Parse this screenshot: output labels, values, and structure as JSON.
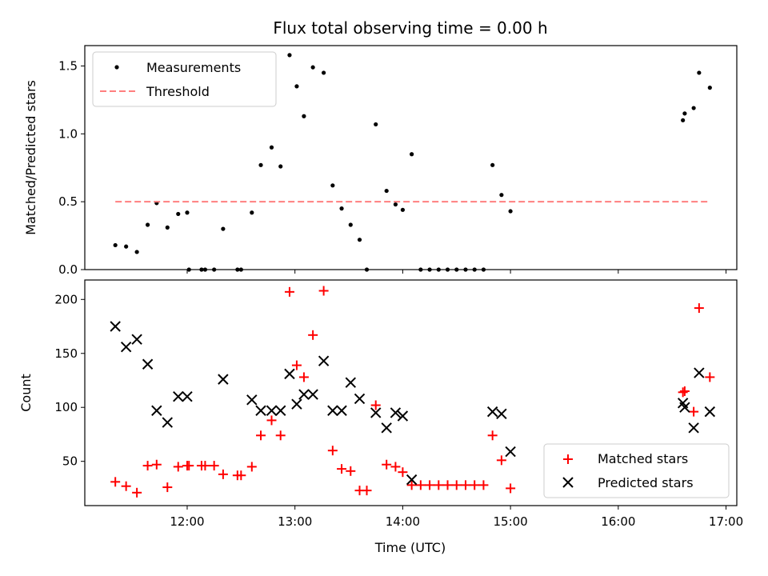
{
  "chart_data": [
    {
      "type": "scatter",
      "title": "Flux total observing time = 0.00 h",
      "xlabel": "",
      "ylabel": "Matched/Predicted stars",
      "xlim": [
        "11:03",
        "17:06"
      ],
      "ylim": [
        0,
        1.65
      ],
      "y_ticks": [
        0.0,
        0.5,
        1.0,
        1.5
      ],
      "y_tick_labels": [
        "0.0",
        "0.5",
        "1.0",
        "1.5"
      ],
      "x_ticks": [
        "12:00",
        "13:00",
        "14:00",
        "15:00",
        "16:00",
        "17:00"
      ],
      "legend_position": "top-left",
      "series": [
        {
          "name": "Measurements",
          "style": "dot",
          "color": "#000000",
          "points": [
            [
              "11:20",
              0.18
            ],
            [
              "11:26",
              0.17
            ],
            [
              "11:32",
              0.13
            ],
            [
              "11:38",
              0.33
            ],
            [
              "11:43",
              0.49
            ],
            [
              "11:49",
              0.31
            ],
            [
              "11:55",
              0.41
            ],
            [
              "12:00",
              0.42
            ],
            [
              "12:01",
              0.0
            ],
            [
              "12:08",
              0.0
            ],
            [
              "12:10",
              0.0
            ],
            [
              "12:15",
              0.0
            ],
            [
              "12:20",
              0.3
            ],
            [
              "12:28",
              0.0
            ],
            [
              "12:30",
              0.0
            ],
            [
              "12:36",
              0.42
            ],
            [
              "12:41",
              0.77
            ],
            [
              "12:47",
              0.9
            ],
            [
              "12:52",
              0.76
            ],
            [
              "12:57",
              1.58
            ],
            [
              "13:01",
              1.35
            ],
            [
              "13:05",
              1.13
            ],
            [
              "13:10",
              1.49
            ],
            [
              "13:16",
              1.45
            ],
            [
              "13:21",
              0.62
            ],
            [
              "13:26",
              0.45
            ],
            [
              "13:31",
              0.33
            ],
            [
              "13:36",
              0.22
            ],
            [
              "13:40",
              0.0
            ],
            [
              "13:45",
              1.07
            ],
            [
              "13:51",
              0.58
            ],
            [
              "13:56",
              0.48
            ],
            [
              "14:00",
              0.44
            ],
            [
              "14:05",
              0.85
            ],
            [
              "14:10",
              0.0
            ],
            [
              "14:15",
              0.0
            ],
            [
              "14:20",
              0.0
            ],
            [
              "14:25",
              0.0
            ],
            [
              "14:30",
              0.0
            ],
            [
              "14:35",
              0.0
            ],
            [
              "14:40",
              0.0
            ],
            [
              "14:45",
              0.0
            ],
            [
              "14:50",
              0.77
            ],
            [
              "14:55",
              0.55
            ],
            [
              "15:00",
              0.43
            ],
            [
              "16:36",
              1.1
            ],
            [
              "16:37",
              1.15
            ],
            [
              "16:42",
              1.19
            ],
            [
              "16:45",
              1.45
            ],
            [
              "16:51",
              1.34
            ]
          ]
        },
        {
          "name": "Threshold",
          "style": "dashed-line",
          "color": "#ff7f7f",
          "points": [
            [
              "11:20",
              0.5
            ],
            [
              "16:51",
              0.5
            ]
          ]
        }
      ]
    },
    {
      "type": "scatter",
      "title": "",
      "xlabel": "Time (UTC)",
      "ylabel": "Count",
      "xlim": [
        "11:03",
        "17:06"
      ],
      "ylim": [
        9,
        218
      ],
      "y_ticks": [
        50,
        100,
        150,
        200
      ],
      "y_tick_labels": [
        "50",
        "100",
        "150",
        "200"
      ],
      "x_ticks": [
        "12:00",
        "13:00",
        "14:00",
        "15:00",
        "16:00",
        "17:00"
      ],
      "x_tick_labels": [
        "12:00",
        "13:00",
        "14:00",
        "15:00",
        "16:00",
        "17:00"
      ],
      "legend_position": "bottom-right",
      "series": [
        {
          "name": "Matched stars",
          "style": "plus",
          "color": "#ff0000",
          "points": [
            [
              "11:20",
              31
            ],
            [
              "11:26",
              27
            ],
            [
              "11:32",
              21
            ],
            [
              "11:38",
              46
            ],
            [
              "11:43",
              47
            ],
            [
              "11:49",
              26
            ],
            [
              "11:55",
              45
            ],
            [
              "12:00",
              46
            ],
            [
              "12:01",
              46
            ],
            [
              "12:08",
              46
            ],
            [
              "12:10",
              46
            ],
            [
              "12:15",
              46
            ],
            [
              "12:20",
              38
            ],
            [
              "12:28",
              37
            ],
            [
              "12:30",
              37
            ],
            [
              "12:36",
              45
            ],
            [
              "12:41",
              74
            ],
            [
              "12:47",
              88
            ],
            [
              "12:52",
              74
            ],
            [
              "12:57",
              207
            ],
            [
              "13:01",
              139
            ],
            [
              "13:05",
              128
            ],
            [
              "13:10",
              167
            ],
            [
              "13:16",
              208
            ],
            [
              "13:21",
              60
            ],
            [
              "13:26",
              43
            ],
            [
              "13:31",
              41
            ],
            [
              "13:36",
              23
            ],
            [
              "13:40",
              23
            ],
            [
              "13:45",
              102
            ],
            [
              "13:51",
              47
            ],
            [
              "13:56",
              45
            ],
            [
              "14:00",
              40
            ],
            [
              "14:05",
              28
            ],
            [
              "14:10",
              28
            ],
            [
              "14:15",
              28
            ],
            [
              "14:20",
              28
            ],
            [
              "14:25",
              28
            ],
            [
              "14:30",
              28
            ],
            [
              "14:35",
              28
            ],
            [
              "14:40",
              28
            ],
            [
              "14:45",
              28
            ],
            [
              "14:50",
              74
            ],
            [
              "14:55",
              51
            ],
            [
              "15:00",
              25
            ],
            [
              "16:36",
              114
            ],
            [
              "16:37",
              115
            ],
            [
              "16:42",
              96
            ],
            [
              "16:45",
              192
            ],
            [
              "16:51",
              128
            ]
          ]
        },
        {
          "name": "Predicted stars",
          "style": "x",
          "color": "#000000",
          "points": [
            [
              "11:20",
              175
            ],
            [
              "11:26",
              156
            ],
            [
              "11:32",
              163
            ],
            [
              "11:38",
              140
            ],
            [
              "11:43",
              97
            ],
            [
              "11:49",
              86
            ],
            [
              "11:55",
              110
            ],
            [
              "12:00",
              110
            ],
            [
              "12:20",
              126
            ],
            [
              "12:36",
              107
            ],
            [
              "12:41",
              97
            ],
            [
              "12:47",
              97
            ],
            [
              "12:52",
              97
            ],
            [
              "12:57",
              131
            ],
            [
              "13:01",
              103
            ],
            [
              "13:05",
              112
            ],
            [
              "13:10",
              112
            ],
            [
              "13:16",
              143
            ],
            [
              "13:21",
              97
            ],
            [
              "13:26",
              97
            ],
            [
              "13:31",
              123
            ],
            [
              "13:36",
              108
            ],
            [
              "13:45",
              95
            ],
            [
              "13:51",
              81
            ],
            [
              "13:56",
              95
            ],
            [
              "14:00",
              92
            ],
            [
              "14:05",
              33
            ],
            [
              "14:50",
              96
            ],
            [
              "14:55",
              94
            ],
            [
              "15:00",
              59
            ],
            [
              "16:36",
              104
            ],
            [
              "16:37",
              100
            ],
            [
              "16:42",
              81
            ],
            [
              "16:45",
              132
            ],
            [
              "16:51",
              96
            ]
          ]
        }
      ]
    }
  ]
}
